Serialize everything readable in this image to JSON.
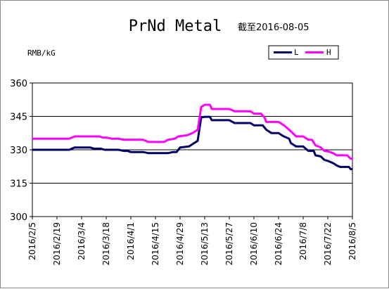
{
  "chart_data": {
    "type": "line",
    "title": "PrNd Metal",
    "subtitle": "截至2016-08-05",
    "ylabel": "RMB/kG",
    "ylim": [
      300,
      360
    ],
    "yticks": [
      "300",
      "315",
      "330",
      "345",
      "360"
    ],
    "grid": true,
    "legend_position": "top-right",
    "x_tick_labels": [
      "2016/2/5",
      "2016/2/19",
      "2016/3/4",
      "2016/3/18",
      "2016/4/1",
      "2016/4/15",
      "2016/4/29",
      "2016/5/13",
      "2016/5/27",
      "2016/6/10",
      "2016/6/24",
      "2016/7/8",
      "2016/7/22",
      "2016/8/5"
    ],
    "series": [
      {
        "name": "L",
        "color": "#000066",
        "points": [
          [
            "2016-02-05",
            330
          ],
          [
            "2016-02-26",
            330
          ],
          [
            "2016-02-29",
            331
          ],
          [
            "2016-03-09",
            331
          ],
          [
            "2016-03-11",
            330.5
          ],
          [
            "2016-03-15",
            330.5
          ],
          [
            "2016-03-17",
            330
          ],
          [
            "2016-03-25",
            330
          ],
          [
            "2016-03-28",
            329.5
          ],
          [
            "2016-03-30",
            329.5
          ],
          [
            "2016-04-01",
            329
          ],
          [
            "2016-04-08",
            329
          ],
          [
            "2016-04-11",
            328.5
          ],
          [
            "2016-04-22",
            328.5
          ],
          [
            "2016-04-25",
            329
          ],
          [
            "2016-04-27",
            329
          ],
          [
            "2016-04-29",
            331
          ],
          [
            "2016-05-04",
            331.5
          ],
          [
            "2016-05-06",
            332.5
          ],
          [
            "2016-05-09",
            334
          ],
          [
            "2016-05-11",
            344.5
          ],
          [
            "2016-05-13",
            344.8
          ],
          [
            "2016-05-16",
            344.8
          ],
          [
            "2016-05-17",
            343.3
          ],
          [
            "2016-05-27",
            343.3
          ],
          [
            "2016-05-30",
            342
          ],
          [
            "2016-06-08",
            342
          ],
          [
            "2016-06-10",
            341
          ],
          [
            "2016-06-15",
            341
          ],
          [
            "2016-06-17",
            339
          ],
          [
            "2016-06-20",
            337.5
          ],
          [
            "2016-06-24",
            337.5
          ],
          [
            "2016-06-27",
            336
          ],
          [
            "2016-06-30",
            335
          ],
          [
            "2016-07-01",
            333
          ],
          [
            "2016-07-04",
            331.5
          ],
          [
            "2016-07-08",
            331.5
          ],
          [
            "2016-07-11",
            329.5
          ],
          [
            "2016-07-14",
            329.5
          ],
          [
            "2016-07-15",
            327.5
          ],
          [
            "2016-07-18",
            327
          ],
          [
            "2016-07-20",
            325.5
          ],
          [
            "2016-07-22",
            325
          ],
          [
            "2016-07-25",
            324
          ],
          [
            "2016-07-27",
            323
          ],
          [
            "2016-07-29",
            322.3
          ],
          [
            "2016-08-03",
            322.3
          ],
          [
            "2016-08-04",
            321.3
          ],
          [
            "2016-08-05",
            321.3
          ]
        ]
      },
      {
        "name": "H",
        "color": "#FF00FF",
        "points": [
          [
            "2016-02-05",
            335
          ],
          [
            "2016-02-26",
            335
          ],
          [
            "2016-02-29",
            336
          ],
          [
            "2016-03-14",
            336
          ],
          [
            "2016-03-16",
            335.5
          ],
          [
            "2016-03-18",
            335.5
          ],
          [
            "2016-03-21",
            335
          ],
          [
            "2016-03-25",
            335
          ],
          [
            "2016-03-28",
            334.5
          ],
          [
            "2016-04-08",
            334.5
          ],
          [
            "2016-04-11",
            333.5
          ],
          [
            "2016-04-20",
            333.5
          ],
          [
            "2016-04-22",
            334.5
          ],
          [
            "2016-04-26",
            335
          ],
          [
            "2016-04-28",
            336
          ],
          [
            "2016-05-03",
            336.5
          ],
          [
            "2016-05-06",
            337.5
          ],
          [
            "2016-05-09",
            339
          ],
          [
            "2016-05-11",
            349.2
          ],
          [
            "2016-05-13",
            350.2
          ],
          [
            "2016-05-16",
            350.2
          ],
          [
            "2016-05-17",
            348.3
          ],
          [
            "2016-05-27",
            348.3
          ],
          [
            "2016-05-30",
            347.3
          ],
          [
            "2016-06-08",
            347.3
          ],
          [
            "2016-06-10",
            346.2
          ],
          [
            "2016-06-14",
            346.2
          ],
          [
            "2016-06-16",
            344.5
          ],
          [
            "2016-06-17",
            342.5
          ],
          [
            "2016-06-24",
            342.5
          ],
          [
            "2016-06-27",
            341
          ],
          [
            "2016-06-30",
            339
          ],
          [
            "2016-07-04",
            336
          ],
          [
            "2016-07-08",
            336
          ],
          [
            "2016-07-11",
            334.5
          ],
          [
            "2016-07-13",
            334.5
          ],
          [
            "2016-07-15",
            332
          ],
          [
            "2016-07-18",
            331
          ],
          [
            "2016-07-20",
            329.5
          ],
          [
            "2016-07-22",
            329.3
          ],
          [
            "2016-07-25",
            328.5
          ],
          [
            "2016-07-27",
            327.5
          ],
          [
            "2016-08-02",
            327.5
          ],
          [
            "2016-08-04",
            326
          ],
          [
            "2016-08-05",
            326
          ]
        ]
      }
    ]
  }
}
